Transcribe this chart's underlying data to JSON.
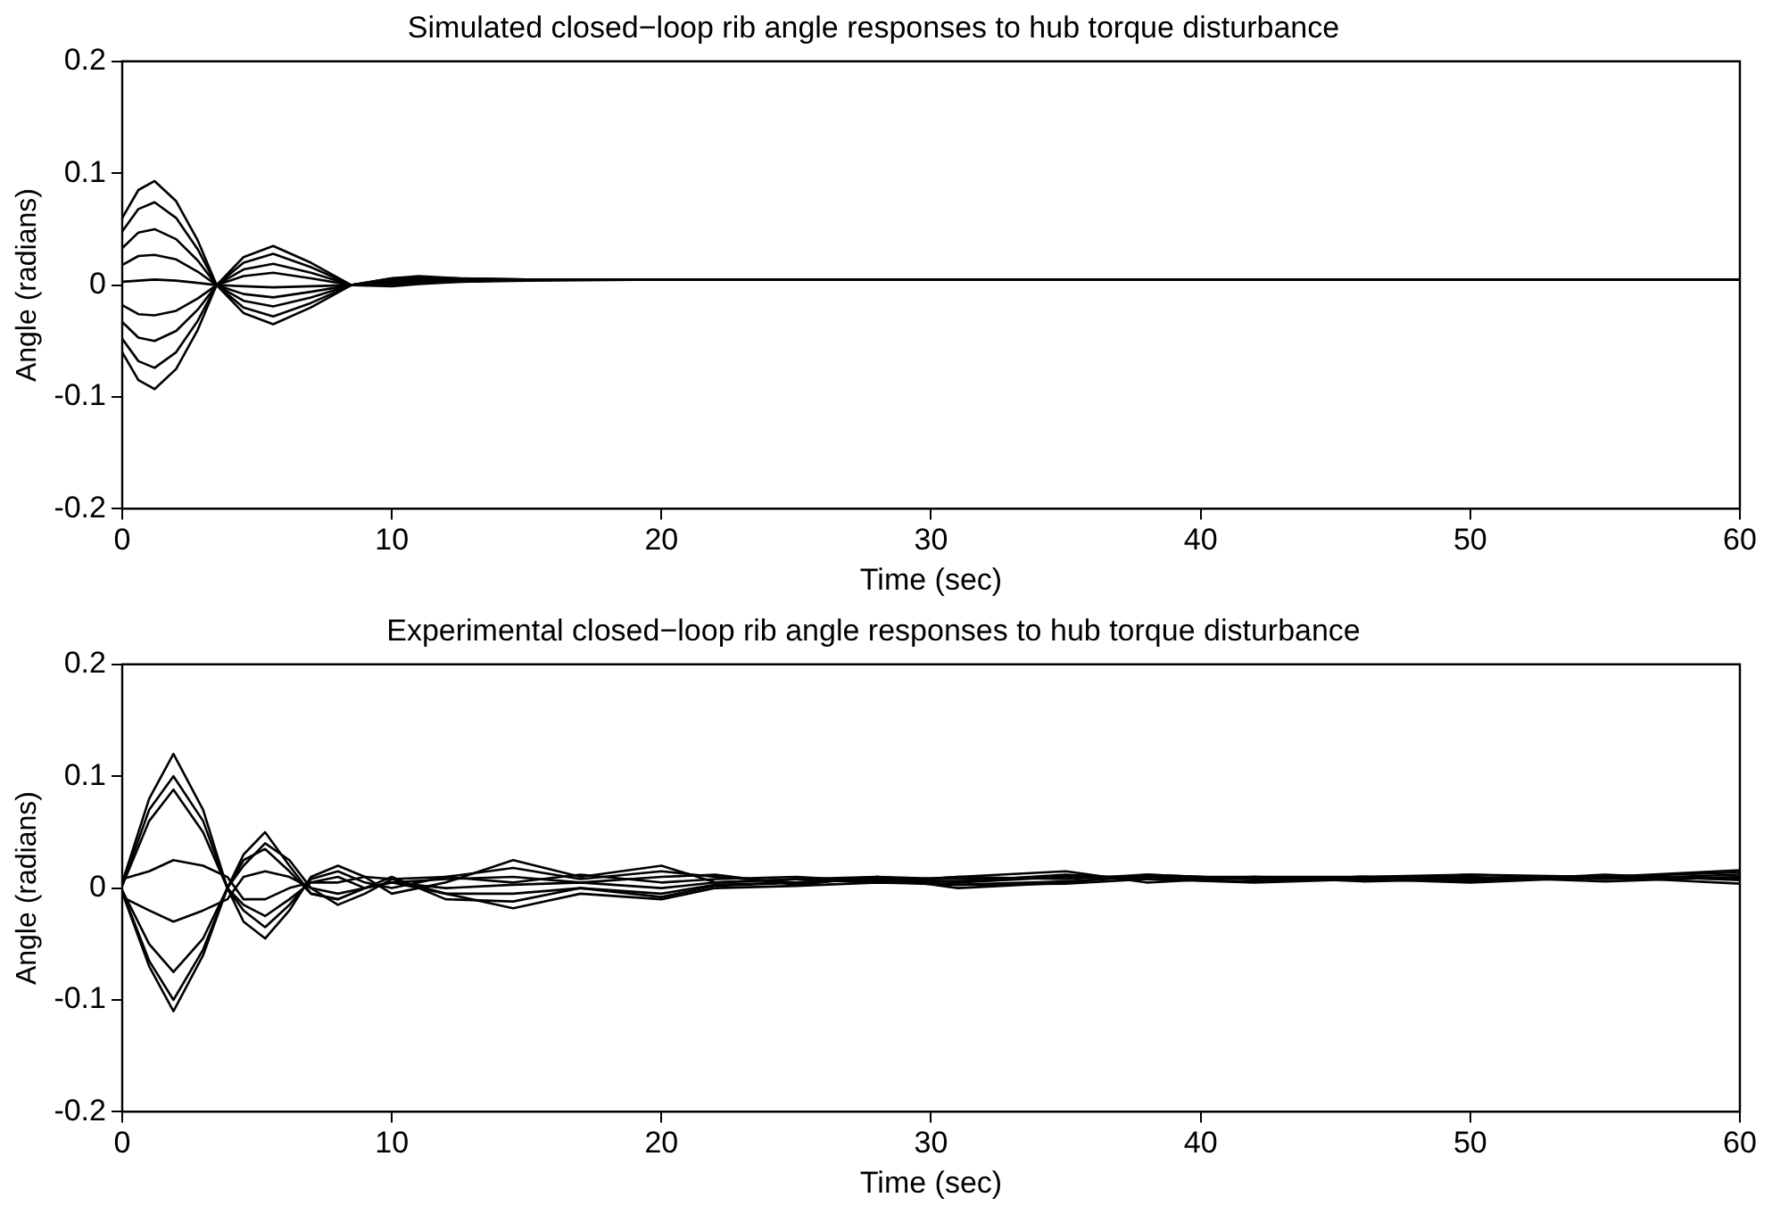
{
  "chart_data": [
    {
      "type": "line",
      "title": "Simulated closed−loop rib angle responses to hub torque disturbance",
      "xlabel": "Time (sec)",
      "ylabel": "Angle (radians)",
      "xlim": [
        0,
        60
      ],
      "xticks": [
        0,
        10,
        20,
        30,
        40,
        50,
        60
      ],
      "ylim": [
        -0.2,
        0.2
      ],
      "yticks": [
        -0.2,
        -0.1,
        0,
        0.1,
        0.2
      ],
      "grid": false,
      "marker": "none",
      "line_style": "solid",
      "x": [
        0,
        0.6,
        1.2,
        2,
        2.8,
        3.5,
        4.5,
        5.6,
        7,
        8.5,
        10,
        11,
        12.5,
        15,
        20,
        30,
        40,
        50,
        60
      ],
      "series": [
        {
          "color": "#000000",
          "values": [
            0.06,
            0.085,
            0.093,
            0.075,
            0.04,
            0,
            -0.025,
            -0.035,
            -0.02,
            0,
            0.006,
            0.008,
            0.006,
            0.005,
            0.005,
            0.005,
            0.005,
            0.005,
            0.005
          ]
        },
        {
          "color": "#000000",
          "values": [
            0.048,
            0.068,
            0.074,
            0.06,
            0.032,
            0,
            -0.02,
            -0.028,
            -0.016,
            0,
            0.006,
            0.007,
            0.006,
            0.005,
            0.005,
            0.005,
            0.005,
            0.005,
            0.005
          ]
        },
        {
          "color": "#000000",
          "values": [
            0.033,
            0.047,
            0.05,
            0.041,
            0.022,
            0,
            -0.014,
            -0.019,
            -0.011,
            0,
            0.005,
            0.006,
            0.005,
            0.005,
            0.005,
            0.005,
            0.005,
            0.005,
            0.005
          ]
        },
        {
          "color": "#000000",
          "values": [
            0.018,
            0.026,
            0.027,
            0.023,
            0.012,
            0,
            -0.008,
            -0.011,
            -0.006,
            0,
            0.004,
            0.005,
            0.005,
            0.005,
            0.005,
            0.005,
            0.005,
            0.005,
            0.005
          ]
        },
        {
          "color": "#000000",
          "values": [
            0.003,
            0.004,
            0.005,
            0.004,
            0.002,
            0,
            -0.001,
            -0.002,
            -0.001,
            0,
            0.003,
            0.004,
            0.005,
            0.005,
            0.005,
            0.005,
            0.005,
            0.005,
            0.005
          ]
        },
        {
          "color": "#000000",
          "values": [
            -0.018,
            -0.026,
            -0.027,
            -0.023,
            -0.012,
            0,
            0.008,
            0.011,
            0.006,
            0,
            0.002,
            0.003,
            0.004,
            0.005,
            0.005,
            0.005,
            0.005,
            0.005,
            0.005
          ]
        },
        {
          "color": "#000000",
          "values": [
            -0.033,
            -0.047,
            -0.05,
            -0.041,
            -0.022,
            0,
            0.014,
            0.019,
            0.011,
            0,
            0.001,
            0.002,
            0.004,
            0.005,
            0.005,
            0.005,
            0.005,
            0.005,
            0.005
          ]
        },
        {
          "color": "#000000",
          "values": [
            -0.048,
            -0.068,
            -0.074,
            -0.06,
            -0.032,
            0,
            0.02,
            0.028,
            0.016,
            0,
            0,
            0.002,
            0.003,
            0.005,
            0.005,
            0.005,
            0.005,
            0.005,
            0.005
          ]
        },
        {
          "color": "#000000",
          "values": [
            -0.06,
            -0.085,
            -0.093,
            -0.075,
            -0.04,
            0,
            0.025,
            0.035,
            0.02,
            0,
            -0.001,
            0.001,
            0.003,
            0.004,
            0.005,
            0.005,
            0.005,
            0.005,
            0.005
          ]
        }
      ]
    },
    {
      "type": "line",
      "title": "Experimental closed−loop rib angle responses to hub torque disturbance",
      "xlabel": "Time (sec)",
      "ylabel": "Angle (radians)",
      "xlim": [
        0,
        60
      ],
      "xticks": [
        0,
        10,
        20,
        30,
        40,
        50,
        60
      ],
      "ylim": [
        -0.2,
        0.2
      ],
      "yticks": [
        -0.2,
        -0.1,
        0,
        0.1,
        0.2
      ],
      "grid": false,
      "marker": "none",
      "line_style": "solid",
      "x": [
        0,
        1,
        1.9,
        3,
        3.9,
        4.5,
        5.3,
        6.2,
        7,
        8,
        9,
        10,
        12,
        14.5,
        17,
        20,
        22,
        25,
        28,
        31,
        35,
        38,
        42,
        46,
        50,
        55,
        60
      ],
      "series": [
        {
          "color": "#000000",
          "values": [
            0.005,
            0.08,
            0.12,
            0.07,
            0,
            -0.03,
            -0.045,
            -0.02,
            0.01,
            0.02,
            0.01,
            -0.005,
            0.005,
            0.025,
            0.01,
            0.02,
            0.005,
            0.008,
            0.005,
            0.01,
            0.015,
            0.005,
            0.01,
            0.008,
            0.012,
            0.008,
            0.012
          ]
        },
        {
          "color": "#000000",
          "values": [
            0.003,
            0.07,
            0.1,
            0.06,
            0,
            -0.02,
            -0.035,
            -0.015,
            0.008,
            0.015,
            0.005,
            0,
            0.01,
            0.018,
            0.008,
            0.015,
            0.01,
            0.005,
            0.008,
            0.006,
            0.012,
            0.008,
            0.006,
            0.01,
            0.01,
            0.006,
            0.01
          ]
        },
        {
          "color": "#000000",
          "values": [
            0.002,
            0.06,
            0.088,
            0.05,
            0,
            -0.015,
            -0.025,
            -0.01,
            0.005,
            0.01,
            0,
            0.005,
            0.008,
            0.01,
            0.005,
            0.01,
            0.012,
            0.003,
            0.01,
            0.008,
            0.01,
            0.01,
            0.01,
            0.006,
            0.008,
            0.01,
            0.009
          ]
        },
        {
          "color": "#000000",
          "values": [
            0.008,
            0.015,
            0.025,
            0.02,
            0.01,
            -0.01,
            -0.01,
            0,
            0.005,
            0.005,
            0.01,
            0.008,
            0.01,
            0.005,
            0.012,
            0.005,
            0.008,
            0.01,
            0.006,
            0.01,
            0.008,
            0.012,
            0.008,
            0.01,
            0.008,
            0.01,
            0.016
          ]
        },
        {
          "color": "#000000",
          "values": [
            -0.008,
            -0.02,
            -0.03,
            -0.02,
            -0.01,
            0.01,
            0.015,
            0.01,
            0,
            -0.005,
            0,
            0.005,
            0,
            0.003,
            0.005,
            0,
            0.005,
            0.008,
            0.01,
            0.005,
            0.01,
            0.008,
            0.01,
            0.01,
            0.012,
            0.01,
            0.004
          ]
        },
        {
          "color": "#000000",
          "values": [
            -0.002,
            -0.05,
            -0.075,
            -0.045,
            0,
            0.025,
            0.035,
            0.015,
            -0.005,
            -0.01,
            0,
            0.005,
            -0.005,
            -0.005,
            0,
            -0.005,
            0.003,
            0.005,
            0.008,
            0.003,
            0.006,
            0.01,
            0.008,
            0.01,
            0.008,
            0.01,
            0.008
          ]
        },
        {
          "color": "#000000",
          "values": [
            -0.004,
            -0.07,
            -0.11,
            -0.06,
            0,
            0.03,
            0.05,
            0.02,
            -0.005,
            -0.01,
            0,
            0.01,
            -0.01,
            -0.012,
            0,
            -0.008,
            0.002,
            0.005,
            0.01,
            0,
            0.005,
            0.012,
            0.008,
            0.01,
            0.006,
            0.012,
            0.007
          ]
        },
        {
          "color": "#000000",
          "values": [
            -0.003,
            -0.065,
            -0.1,
            -0.055,
            0,
            0.02,
            0.04,
            0.025,
            0,
            -0.015,
            -0.005,
            0.008,
            -0.005,
            -0.018,
            -0.005,
            -0.01,
            0,
            0.002,
            0.005,
            0.003,
            0.004,
            0.008,
            0.005,
            0.008,
            0.005,
            0.01,
            0.014
          ]
        }
      ]
    }
  ]
}
